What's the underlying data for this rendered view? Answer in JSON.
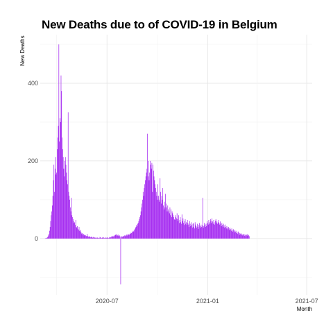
{
  "chart_data": {
    "type": "bar",
    "title": "New Deaths due to of COVID-19 in Belgium",
    "xlabel": "Month",
    "ylabel": "New Deaths",
    "x_domain": [
      "2020-03-01",
      "2021-07-11"
    ],
    "ylim": [
      -145,
      525
    ],
    "y_ticks": [
      0,
      200,
      400
    ],
    "x_ticks": [
      {
        "date": "2020-07-01",
        "label": "2020-07"
      },
      {
        "date": "2021-01-01",
        "label": "2021-01"
      },
      {
        "date": "2021-07-01",
        "label": "2021-07"
      }
    ],
    "grid": true,
    "bar_color": "#A020F0",
    "series": [
      {
        "start_date": "2020-03-10",
        "values": [
          0,
          1,
          1,
          2,
          3,
          5,
          8,
          12,
          20,
          30,
          45,
          60,
          70,
          85,
          110,
          150,
          190,
          120,
          180,
          210,
          165,
          170,
          230,
          260,
          290,
          500,
          250,
          310,
          300,
          420,
          380,
          260,
          230,
          210,
          180,
          160,
          200,
          210,
          190,
          170,
          150,
          140,
          325,
          120,
          110,
          100,
          80,
          70,
          105,
          60,
          55,
          50,
          45,
          40,
          42,
          35,
          48,
          30,
          28,
          32,
          25,
          22,
          30,
          20,
          18,
          22,
          15,
          12,
          14,
          10,
          12,
          8,
          10,
          9,
          8,
          6,
          7,
          12,
          6,
          5,
          4,
          6,
          5,
          3,
          4,
          5,
          3,
          2,
          4,
          3,
          2,
          3,
          2,
          1,
          2,
          3,
          2,
          1,
          2,
          1,
          4,
          3,
          2,
          1,
          2,
          3,
          2,
          3,
          1,
          2,
          3,
          1,
          2,
          2,
          3,
          2,
          1,
          3,
          2,
          4,
          3,
          5,
          6,
          4,
          7,
          5,
          8,
          6,
          9,
          10,
          8,
          12,
          9,
          7,
          10,
          6,
          8,
          5,
          -118,
          6,
          5,
          4,
          6,
          7,
          5,
          8,
          6,
          9,
          7,
          10,
          8,
          12,
          9,
          11,
          10,
          13,
          12,
          15,
          14,
          18,
          16,
          20,
          18,
          22,
          25,
          28,
          30,
          35,
          32,
          38,
          40,
          45,
          50,
          55,
          60,
          70,
          80,
          90,
          100,
          120,
          110,
          130,
          140,
          150,
          160,
          170,
          180,
          270,
          160,
          200,
          150,
          170,
          200,
          190,
          180,
          195,
          120,
          190,
          175,
          160,
          150,
          140,
          130,
          120,
          110,
          100,
          140,
          110,
          100,
          95,
          155,
          120,
          90,
          110,
          100,
          130,
          85,
          75,
          95,
          80,
          115,
          90,
          80,
          70,
          85,
          75,
          70,
          65,
          80,
          60,
          75,
          55,
          70,
          65,
          60,
          55,
          50,
          48,
          60,
          55,
          52,
          65,
          50,
          45,
          60,
          40,
          48,
          55,
          42,
          38,
          62,
          45,
          52,
          40,
          35,
          45,
          50,
          38,
          42,
          35,
          48,
          40,
          36,
          30,
          45,
          38,
          32,
          42,
          35,
          28,
          38,
          40,
          30,
          26,
          42,
          36,
          32,
          28,
          38,
          30,
          25,
          35,
          40,
          32,
          28,
          36,
          30,
          34,
          105,
          28,
          32,
          40,
          35,
          30,
          38,
          32,
          45,
          40,
          36,
          48,
          42,
          38,
          50,
          45,
          40,
          52,
          44,
          38,
          48,
          42,
          36,
          46,
          50,
          40,
          44,
          38,
          42,
          48,
          40,
          36,
          44,
          38,
          32,
          40,
          35,
          30,
          38,
          34,
          28,
          36,
          30,
          26,
          32,
          28,
          24,
          30,
          26,
          22,
          28,
          24,
          20,
          26,
          22,
          18,
          24,
          20,
          16,
          22,
          18,
          14,
          20,
          16,
          12,
          18,
          15,
          10,
          14,
          12,
          9,
          13,
          11,
          8,
          12,
          10,
          7,
          11,
          9,
          6,
          10,
          8,
          12,
          7,
          9,
          6
        ]
      }
    ]
  }
}
